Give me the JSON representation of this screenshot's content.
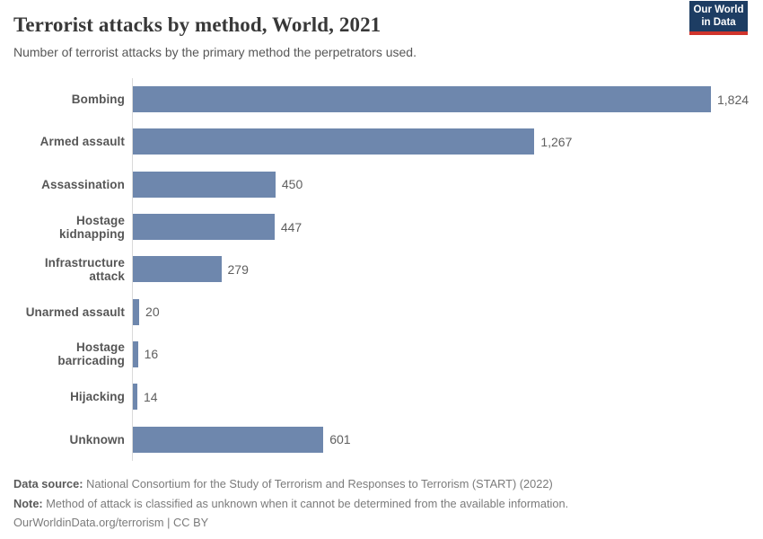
{
  "header": {
    "title": "Terrorist attacks by method, World, 2021",
    "subtitle": "Number of terrorist attacks by the primary method the perpetrators used.",
    "logo": {
      "line1": "Our World",
      "line2": "in Data",
      "bg_color": "#1d3d63",
      "accent_color": "#d0342c"
    }
  },
  "chart_data": {
    "type": "bar",
    "orientation": "horizontal",
    "title": "Terrorist attacks by method, World, 2021",
    "xlabel": "",
    "ylabel": "",
    "xlim": [
      0,
      1824
    ],
    "grid": false,
    "legend": false,
    "bar_color": "#6e87ad",
    "categories": [
      "Bombing",
      "Armed assault",
      "Assassination",
      "Hostage kidnapping",
      "Infrastructure attack",
      "Unarmed assault",
      "Hostage barricading",
      "Hijacking",
      "Unknown"
    ],
    "values": [
      1824,
      1267,
      450,
      447,
      279,
      20,
      16,
      14,
      601
    ],
    "value_labels": [
      "1,824",
      "1,267",
      "450",
      "447",
      "279",
      "20",
      "16",
      "14",
      "601"
    ]
  },
  "footer": {
    "data_source_label": "Data source:",
    "data_source_text": "National Consortium for the Study of Terrorism and Responses to Terrorism (START) (2022)",
    "note_label": "Note:",
    "note_text": "Method of attack is classified as unknown when it cannot be determined from the available information.",
    "citation": "OurWorldinData.org/terrorism | CC BY"
  }
}
